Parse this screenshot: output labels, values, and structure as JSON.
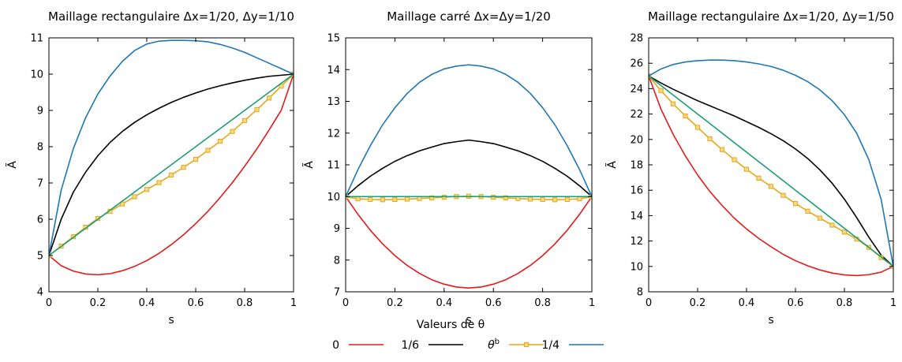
{
  "legend": {
    "title": "Valeurs de θ",
    "placement": "bottom-center",
    "entries": [
      {
        "label": "0",
        "color": "#e41a1c",
        "marker": "none"
      },
      {
        "label": "1/6",
        "color": "#000000",
        "marker": "none"
      },
      {
        "label": "θ^b",
        "color": "#e6a817",
        "marker": "square"
      },
      {
        "label": "1/4",
        "color": "#1f77b4",
        "marker": "none"
      }
    ]
  },
  "chart_data": [
    {
      "type": "line",
      "title": "Maillage rectangulaire Δx=1/20, Δy=1/10",
      "xlabel": "s",
      "ylabel": "Ã",
      "xlim": [
        0,
        1
      ],
      "ylim": [
        4,
        11
      ],
      "xticks": [
        "0",
        "0.2",
        "0.4",
        "0.6",
        "0.8",
        "1"
      ],
      "yticks": [
        "4",
        "5",
        "6",
        "7",
        "8",
        "9",
        "10",
        "11"
      ],
      "grid": false,
      "x": [
        0,
        0.05,
        0.1,
        0.15,
        0.2,
        0.25,
        0.3,
        0.35,
        0.4,
        0.45,
        0.5,
        0.55,
        0.6,
        0.65,
        0.7,
        0.75,
        0.8,
        0.85,
        0.9,
        0.95,
        1
      ],
      "series": [
        {
          "name": "0",
          "color": "#e41a1c",
          "marker": "none",
          "values": [
            5.0,
            4.72,
            4.57,
            4.49,
            4.47,
            4.5,
            4.58,
            4.7,
            4.86,
            5.06,
            5.3,
            5.57,
            5.88,
            6.22,
            6.6,
            7.01,
            7.46,
            7.94,
            8.46,
            9.01,
            10.0
          ]
        },
        {
          "name": "1/6",
          "color": "#000000",
          "marker": "none",
          "values": [
            5.0,
            6.0,
            6.75,
            7.3,
            7.75,
            8.12,
            8.42,
            8.67,
            8.88,
            9.06,
            9.22,
            9.36,
            9.48,
            9.59,
            9.68,
            9.76,
            9.83,
            9.89,
            9.94,
            9.97,
            10.0
          ]
        },
        {
          "name": "θ^b",
          "color": "#e6a817",
          "marker": "square",
          "values": [
            5.0,
            5.26,
            5.52,
            5.78,
            6.02,
            6.22,
            6.42,
            6.62,
            6.82,
            7.01,
            7.22,
            7.43,
            7.65,
            7.9,
            8.15,
            8.42,
            8.72,
            9.02,
            9.34,
            9.67,
            10.0
          ]
        },
        {
          "name": "green",
          "color": "#1a9e77",
          "marker": "none",
          "values": [
            5.0,
            5.25,
            5.5,
            5.75,
            6.0,
            6.25,
            6.5,
            6.75,
            7.0,
            7.25,
            7.5,
            7.75,
            8.0,
            8.25,
            8.5,
            8.75,
            9.0,
            9.25,
            9.5,
            9.75,
            10.0
          ]
        },
        {
          "name": "1/4",
          "color": "#1f77b4",
          "marker": "none",
          "values": [
            5.0,
            6.8,
            7.95,
            8.8,
            9.45,
            9.95,
            10.35,
            10.65,
            10.83,
            10.91,
            10.93,
            10.93,
            10.92,
            10.89,
            10.82,
            10.72,
            10.6,
            10.45,
            10.3,
            10.15,
            10.0
          ]
        }
      ]
    },
    {
      "type": "line",
      "title": "Maillage carré Δx=Δy=1/20",
      "xlabel": "s",
      "ylabel": "Ã",
      "xlim": [
        0,
        1
      ],
      "ylim": [
        7,
        15
      ],
      "xticks": [
        "0",
        "0.2",
        "0.4",
        "0.6",
        "0.8",
        "1"
      ],
      "yticks": [
        "7",
        "8",
        "9",
        "10",
        "11",
        "12",
        "13",
        "14",
        "15"
      ],
      "grid": false,
      "x": [
        0,
        0.05,
        0.1,
        0.15,
        0.2,
        0.25,
        0.3,
        0.35,
        0.4,
        0.45,
        0.5,
        0.55,
        0.6,
        0.65,
        0.7,
        0.75,
        0.8,
        0.85,
        0.9,
        0.95,
        1
      ],
      "series": [
        {
          "name": "0",
          "color": "#e41a1c",
          "marker": "none",
          "values": [
            10.0,
            9.44,
            8.94,
            8.51,
            8.14,
            7.83,
            7.58,
            7.38,
            7.24,
            7.15,
            7.12,
            7.15,
            7.24,
            7.38,
            7.58,
            7.83,
            8.14,
            8.51,
            8.94,
            9.44,
            10.0
          ]
        },
        {
          "name": "1/6",
          "color": "#000000",
          "marker": "none",
          "values": [
            10.0,
            10.34,
            10.64,
            10.89,
            11.11,
            11.29,
            11.44,
            11.56,
            11.67,
            11.73,
            11.78,
            11.73,
            11.67,
            11.56,
            11.44,
            11.29,
            11.11,
            10.89,
            10.64,
            10.34,
            10.0
          ]
        },
        {
          "name": "θ^b",
          "color": "#e6a817",
          "marker": "square",
          "values": [
            10.0,
            9.93,
            9.91,
            9.9,
            9.91,
            9.92,
            9.94,
            9.96,
            9.98,
            10.0,
            10.01,
            10.0,
            9.98,
            9.96,
            9.94,
            9.92,
            9.91,
            9.9,
            9.91,
            9.93,
            10.0
          ]
        },
        {
          "name": "green",
          "color": "#1a9e77",
          "marker": "none",
          "values": [
            10.0,
            10.0,
            10.0,
            10.0,
            10.0,
            10.0,
            10.0,
            10.0,
            10.0,
            10.0,
            10.0,
            10.0,
            10.0,
            10.0,
            10.0,
            10.0,
            10.0,
            10.0,
            10.0,
            10.0,
            10.0
          ]
        },
        {
          "name": "1/4",
          "color": "#1f77b4",
          "marker": "none",
          "values": [
            10.0,
            10.85,
            11.6,
            12.26,
            12.8,
            13.25,
            13.6,
            13.85,
            14.02,
            14.11,
            14.15,
            14.11,
            14.02,
            13.85,
            13.6,
            13.25,
            12.8,
            12.26,
            11.6,
            10.85,
            10.0
          ]
        }
      ]
    },
    {
      "type": "line",
      "title": "Maillage rectangulaire Δx=1/20, Δy=1/50",
      "xlabel": "s",
      "ylabel": "Ã",
      "xlim": [
        0,
        1
      ],
      "ylim": [
        8,
        28
      ],
      "xticks": [
        "0",
        "0.2",
        "0.4",
        "0.6",
        "0.8",
        "1"
      ],
      "yticks": [
        "8",
        "10",
        "12",
        "14",
        "16",
        "18",
        "20",
        "22",
        "24",
        "26",
        "28"
      ],
      "grid": false,
      "x": [
        0,
        0.05,
        0.1,
        0.15,
        0.2,
        0.25,
        0.3,
        0.35,
        0.4,
        0.45,
        0.5,
        0.55,
        0.6,
        0.65,
        0.7,
        0.75,
        0.8,
        0.85,
        0.9,
        0.95,
        1
      ],
      "series": [
        {
          "name": "0",
          "color": "#e41a1c",
          "marker": "none",
          "values": [
            25.0,
            22.4,
            20.4,
            18.7,
            17.2,
            15.9,
            14.8,
            13.8,
            12.95,
            12.2,
            11.55,
            10.95,
            10.45,
            10.05,
            9.72,
            9.48,
            9.33,
            9.28,
            9.35,
            9.55,
            10.0
          ]
        },
        {
          "name": "1/6",
          "color": "#000000",
          "marker": "none",
          "values": [
            25.0,
            24.45,
            23.95,
            23.5,
            23.05,
            22.65,
            22.25,
            21.85,
            21.4,
            20.95,
            20.45,
            19.9,
            19.25,
            18.5,
            17.6,
            16.55,
            15.3,
            13.85,
            12.3,
            10.9,
            10.0
          ]
        },
        {
          "name": "θ^b",
          "color": "#e6a817",
          "marker": "square",
          "values": [
            25.0,
            23.85,
            22.8,
            21.85,
            20.95,
            20.05,
            19.2,
            18.4,
            17.65,
            16.95,
            16.3,
            15.6,
            14.95,
            14.35,
            13.8,
            13.25,
            12.7,
            12.15,
            11.5,
            10.7,
            10.0
          ]
        },
        {
          "name": "green",
          "color": "#1a9e77",
          "marker": "none",
          "values": [
            25.0,
            24.25,
            23.5,
            22.75,
            22.0,
            21.25,
            20.5,
            19.75,
            19.0,
            18.25,
            17.5,
            16.75,
            16.0,
            15.25,
            14.5,
            13.75,
            13.0,
            12.25,
            11.5,
            10.75,
            10.0
          ]
        },
        {
          "name": "1/4",
          "color": "#1f77b4",
          "marker": "none",
          "values": [
            25.0,
            25.55,
            25.9,
            26.1,
            26.2,
            26.25,
            26.25,
            26.2,
            26.1,
            25.95,
            25.75,
            25.45,
            25.05,
            24.55,
            23.9,
            23.05,
            21.95,
            20.5,
            18.4,
            15.3,
            10.0
          ]
        }
      ]
    }
  ]
}
